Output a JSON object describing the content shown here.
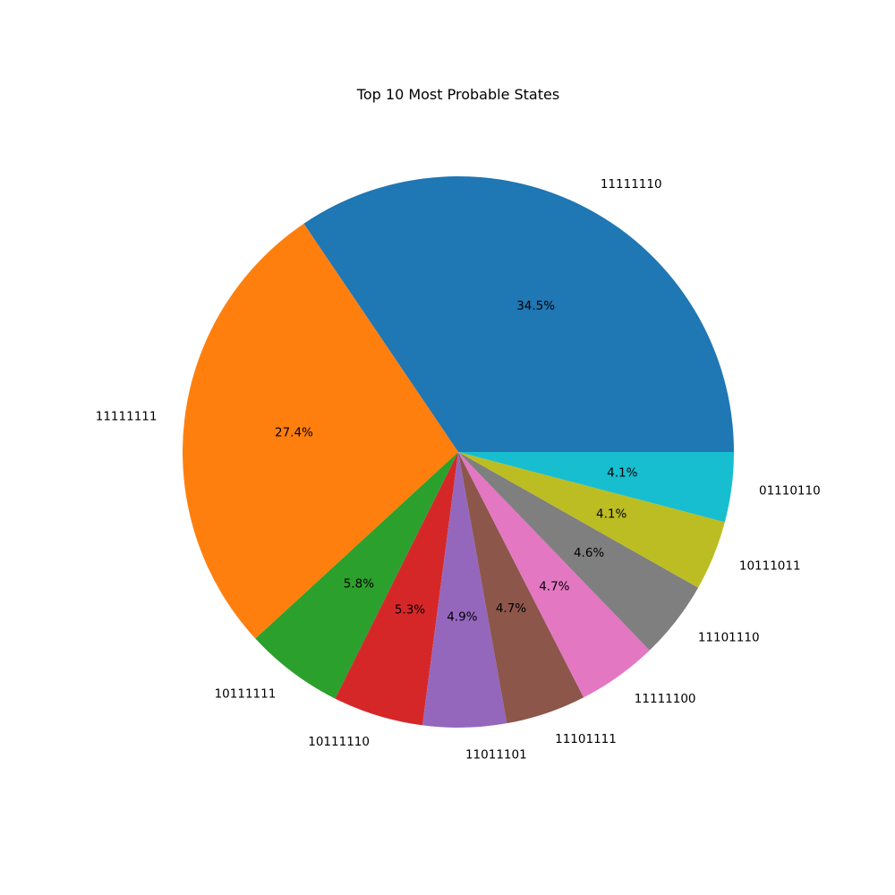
{
  "chart_data": {
    "type": "pie",
    "title": "Top 10 Most Probable States",
    "labels": [
      "11111110",
      "11111111",
      "10111111",
      "10111110",
      "11011101",
      "11101111",
      "11111100",
      "11101110",
      "10111011",
      "01110110"
    ],
    "values": [
      34.5,
      27.4,
      5.8,
      5.3,
      4.9,
      4.7,
      4.7,
      4.6,
      4.1,
      4.1
    ],
    "value_labels": [
      "34.5%",
      "27.4%",
      "5.8%",
      "5.3%",
      "4.9%",
      "4.7%",
      "4.7%",
      "4.6%",
      "4.1%",
      "4.1%"
    ],
    "colors": [
      "#1f77b4",
      "#ff7f0e",
      "#2ca02c",
      "#d62728",
      "#9467bd",
      "#8c564b",
      "#e377c2",
      "#7f7f7f",
      "#bcbd22",
      "#17becf"
    ],
    "start_angle_deg": 0,
    "direction": "counterclockwise",
    "legend": "none"
  }
}
